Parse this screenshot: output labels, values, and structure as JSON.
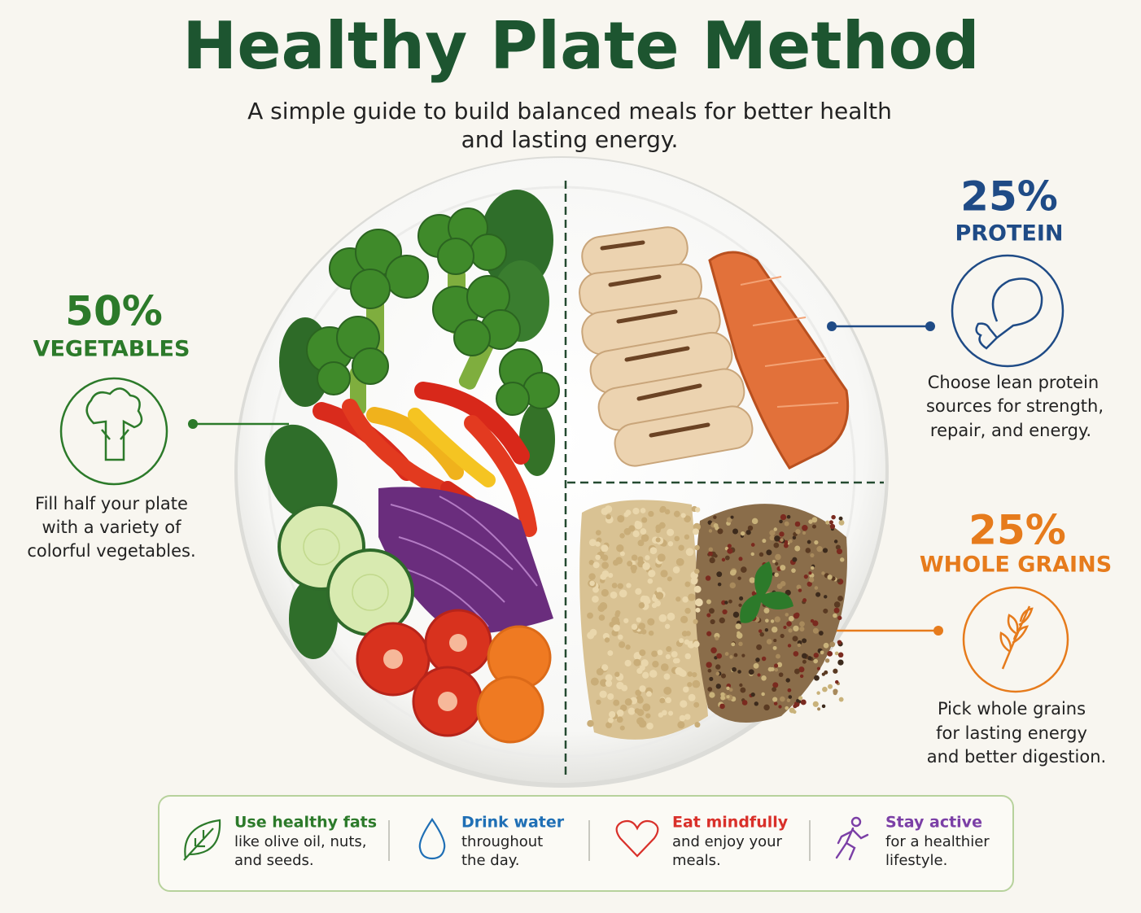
{
  "header": {
    "title": "Healthy Plate Method",
    "subtitle_lines": [
      "A simple guide to build balanced meals for better health",
      "and lasting energy."
    ]
  },
  "sections": {
    "vegetables": {
      "percent": "50%",
      "label": "VEGETABLES",
      "description_lines": [
        "Fill half your plate",
        "with a variety of",
        "colorful vegetables."
      ]
    },
    "protein": {
      "percent": "25%",
      "label": "PROTEIN",
      "description_lines": [
        "Choose lean protein",
        "sources for strength,",
        "repair, and energy."
      ]
    },
    "whole_grains": {
      "percent": "25%",
      "label": "WHOLE GRAINS",
      "description_lines": [
        "Pick whole grains",
        "for lasting energy",
        "and better digestion."
      ]
    }
  },
  "tips": [
    {
      "title": "Use healthy fats",
      "lines": [
        "like olive oil, nuts,",
        "and seeds."
      ]
    },
    {
      "title": "Drink water",
      "lines": [
        "throughout",
        "the day."
      ]
    },
    {
      "title": "Eat mindfully",
      "lines": [
        "and enjoy your",
        "meals."
      ]
    },
    {
      "title": "Stay active",
      "lines": [
        "for a healthier",
        "lifestyle."
      ]
    }
  ]
}
